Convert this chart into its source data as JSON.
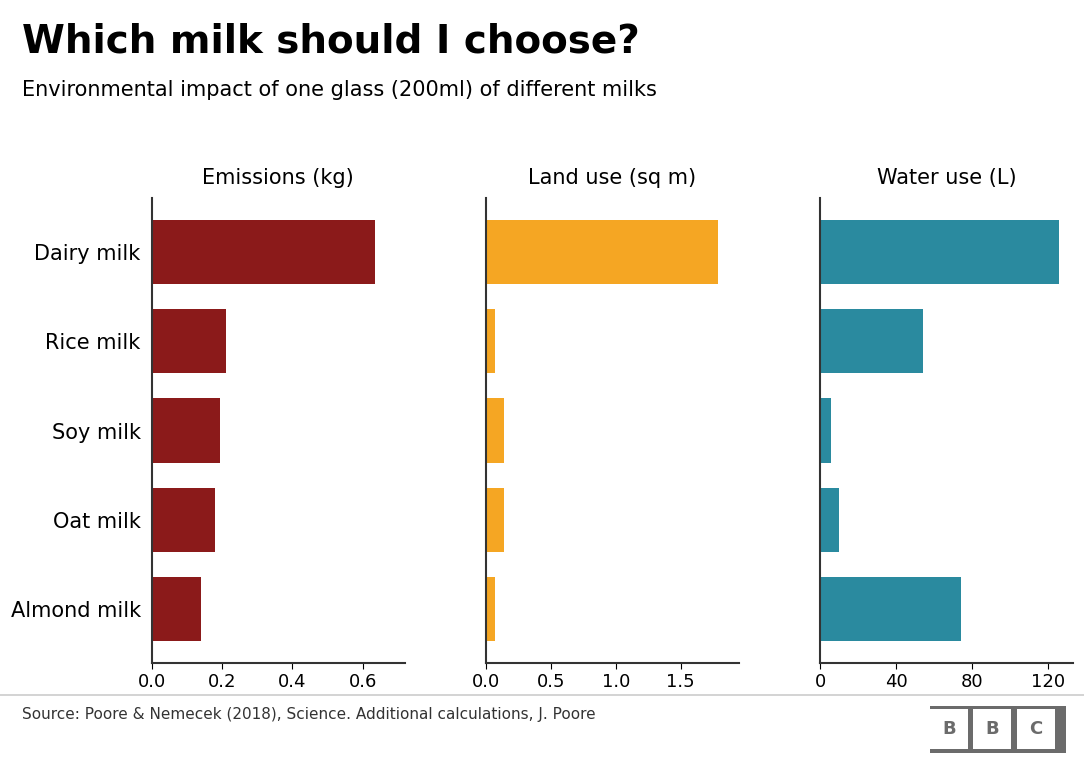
{
  "title": "Which milk should I choose?",
  "subtitle": "Environmental impact of one glass (200ml) of different milks",
  "milks": [
    "Dairy milk",
    "Rice milk",
    "Soy milk",
    "Oat milk",
    "Almond milk"
  ],
  "emissions": [
    0.636,
    0.212,
    0.195,
    0.181,
    0.14
  ],
  "land_use": [
    1.79,
    0.07,
    0.14,
    0.14,
    0.07
  ],
  "water_use": [
    125.6,
    54.0,
    5.6,
    9.8,
    74.3
  ],
  "emissions_color": "#8B1A1A",
  "land_use_color": "#F5A623",
  "water_use_color": "#2A8A9F",
  "emissions_label": "Emissions (kg)",
  "land_use_label": "Land use (sq m)",
  "water_use_label": "Water use (L)",
  "emissions_xlim": [
    0,
    0.72
  ],
  "land_use_xlim": [
    0,
    1.95
  ],
  "water_use_xlim": [
    0,
    133
  ],
  "emissions_xticks": [
    0.0,
    0.2,
    0.4,
    0.6
  ],
  "land_use_xticks": [
    0.0,
    0.5,
    1.0,
    1.5
  ],
  "water_use_xticks": [
    0,
    40,
    80,
    120
  ],
  "source_text": "Source: Poore & Nemecek (2018), Science. Additional calculations, J. Poore",
  "background_color": "#FFFFFF",
  "bar_height": 0.72,
  "title_fontsize": 28,
  "subtitle_fontsize": 15,
  "axis_label_fontsize": 15,
  "tick_fontsize": 13,
  "ylabel_fontsize": 15,
  "source_fontsize": 11,
  "bbc_color": "#6B6B6B"
}
